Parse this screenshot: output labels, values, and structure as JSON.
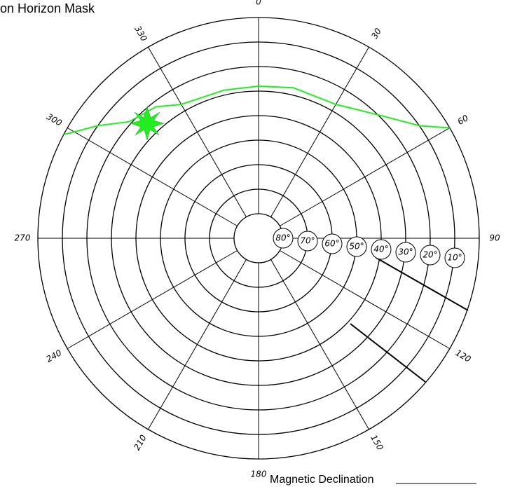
{
  "title": "on Horizon Mask",
  "footer": "Magnetic Declination",
  "azimuth_ticks": [
    0,
    30,
    60,
    90,
    120,
    150,
    180,
    210,
    240,
    270,
    300,
    330
  ],
  "elevation_ticks": [
    {
      "value": 80,
      "label": "80°"
    },
    {
      "value": 70,
      "label": "70°"
    },
    {
      "value": 60,
      "label": "60°"
    },
    {
      "value": 50,
      "label": "50°"
    },
    {
      "value": 40,
      "label": "40°"
    },
    {
      "value": 30,
      "label": "30°"
    },
    {
      "value": 20,
      "label": "20°"
    },
    {
      "value": 10,
      "label": "10°"
    },
    {
      "value": 0,
      "label": null
    }
  ],
  "horizon": {
    "color": "#22ee22",
    "azimuth": [
      298,
      305,
      312,
      322,
      330,
      347,
      0,
      13,
      30,
      44,
      55,
      60
    ],
    "elevation": [
      0,
      10,
      19,
      22,
      27,
      28,
      28,
      27,
      27,
      20,
      10,
      0
    ]
  }
}
